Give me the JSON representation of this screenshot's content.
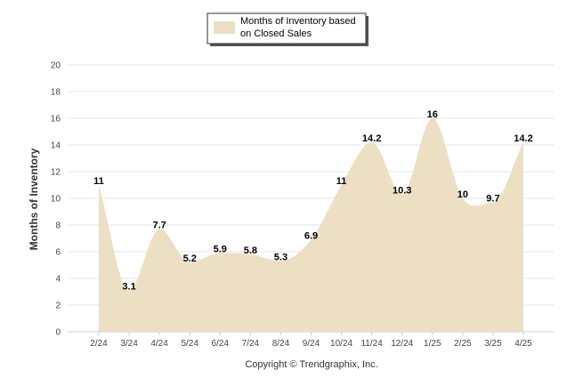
{
  "chart_data": {
    "type": "area",
    "categories": [
      "2/24",
      "3/24",
      "4/24",
      "5/24",
      "6/24",
      "7/24",
      "8/24",
      "9/24",
      "10/24",
      "11/24",
      "12/24",
      "1/25",
      "2/25",
      "3/25",
      "4/25"
    ],
    "series": [
      {
        "name": "Months of Inventory based on Closed Sales",
        "values": [
          11,
          3.1,
          7.7,
          5.2,
          5.9,
          5.8,
          5.3,
          6.9,
          11,
          14.2,
          10.3,
          16,
          10,
          9.7,
          14.2
        ],
        "color": "#ecdfc3"
      }
    ],
    "data_labels": [
      "11",
      "3.1",
      "7.7",
      "5.2",
      "5.9",
      "5.8",
      "5.3",
      "6.9",
      "11",
      "14.2",
      "10.3",
      "16",
      "10",
      "9.7",
      "14.2"
    ],
    "ylabel": "Months of Inventory",
    "ylim": [
      0,
      20
    ],
    "yticks": [
      "0",
      "2",
      "4",
      "6",
      "8",
      "10",
      "12",
      "14",
      "16",
      "18",
      "20"
    ],
    "grid": true,
    "legend_position": "top-center"
  },
  "legend": {
    "line1": "Months of Inventory based",
    "line2": "on Closed Sales"
  },
  "footer": "Copyright © Trendgraphix, Inc."
}
